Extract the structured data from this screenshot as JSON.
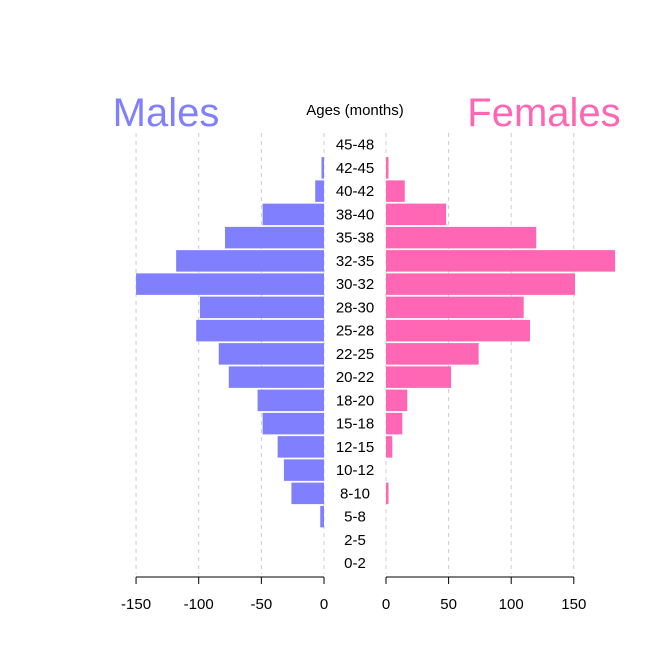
{
  "chart_data": {
    "type": "bar",
    "orientation": "horizontal-pyramid",
    "title": "Ages (months)",
    "categories": [
      "45-48",
      "42-45",
      "40-42",
      "38-40",
      "35-38",
      "32-35",
      "30-32",
      "28-30",
      "25-28",
      "22-25",
      "20-22",
      "18-20",
      "15-18",
      "12-15",
      "10-12",
      "8-10",
      "5-8",
      "2-5",
      "0-2"
    ],
    "series": [
      {
        "name": "Males",
        "color": "#8080ff",
        "values": [
          0,
          2,
          7,
          49,
          79,
          118,
          150,
          99,
          102,
          84,
          76,
          53,
          49,
          37,
          32,
          26,
          3,
          0,
          0
        ]
      },
      {
        "name": "Females",
        "color": "#ff66b3",
        "values": [
          0,
          2,
          15,
          48,
          120,
          183,
          151,
          110,
          115,
          74,
          52,
          17,
          13,
          5,
          0,
          2,
          0,
          0,
          0
        ]
      }
    ],
    "left_axis": {
      "ticks": [
        -150,
        -100,
        -50,
        0
      ],
      "tick_labels": [
        "-150",
        "-100",
        "-50",
        "0"
      ]
    },
    "right_axis": {
      "ticks": [
        0,
        50,
        100,
        150
      ],
      "tick_labels": [
        "0",
        "50",
        "100",
        "150"
      ]
    },
    "grid": "vertical dashed",
    "legend": "top-left and top-right labels"
  }
}
